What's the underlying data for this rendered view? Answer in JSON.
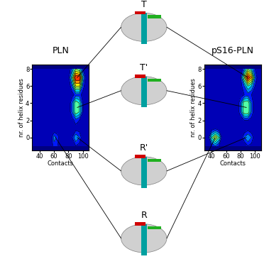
{
  "chart_data": [
    {
      "type": "contour",
      "title": "PLN",
      "x_label": "Contacts",
      "y_label": "nr. of helix residues",
      "x": [
        30,
        35,
        40,
        45,
        50,
        55,
        60,
        65,
        70,
        75,
        80,
        85,
        90,
        95,
        100,
        105,
        110
      ],
      "y": [
        -1,
        0,
        1,
        2,
        3,
        4,
        5,
        6,
        7,
        8
      ],
      "z": [
        [
          0,
          0,
          0,
          0,
          0,
          0,
          1.5,
          1,
          0,
          0,
          0,
          0,
          1,
          0.5,
          0,
          0,
          0
        ],
        [
          0,
          0,
          0,
          0,
          0,
          0,
          2.5,
          1.5,
          0,
          0,
          0,
          1,
          3,
          2,
          0,
          0,
          0
        ],
        [
          0,
          0,
          0,
          0,
          0,
          0,
          0,
          0,
          0,
          0,
          0,
          0,
          0.5,
          0.5,
          0,
          0,
          0
        ],
        [
          0,
          0,
          0,
          0,
          0,
          0,
          0,
          0,
          0,
          0,
          0,
          0.5,
          1.5,
          1,
          0,
          0,
          0
        ],
        [
          0,
          0,
          0,
          0,
          0,
          0,
          0,
          0,
          0,
          0,
          0,
          2,
          5,
          4,
          1,
          0,
          0
        ],
        [
          0,
          0,
          0,
          0,
          0,
          0,
          0,
          0,
          0,
          0,
          0,
          2,
          5,
          4,
          1,
          0,
          0
        ],
        [
          0,
          0,
          0,
          0,
          0,
          0,
          0,
          0,
          0,
          0,
          0,
          0.5,
          1.5,
          1.5,
          0.5,
          0,
          0
        ],
        [
          0,
          0,
          0,
          0,
          0,
          0,
          0,
          0,
          0,
          0,
          0,
          2,
          6,
          6,
          1.5,
          0,
          0
        ],
        [
          0,
          0,
          0,
          0,
          0,
          0,
          0,
          0,
          0,
          0,
          0.5,
          4,
          9,
          9,
          3,
          0,
          0
        ],
        [
          0,
          0,
          0,
          0,
          0,
          0,
          0,
          0,
          0,
          0,
          0,
          2,
          5,
          4,
          1,
          0,
          0
        ]
      ],
      "levels": [
        0,
        1,
        2,
        3,
        4,
        5,
        6,
        7,
        8,
        9,
        10
      ],
      "xlim": [
        30,
        108
      ],
      "ylim": [
        -1.5,
        8.5
      ],
      "xticks": [
        40,
        60,
        80,
        100
      ],
      "yticks": [
        0,
        2,
        4,
        6,
        8
      ]
    },
    {
      "type": "contour",
      "title": "pS16-PLN",
      "x_label": "Contacts",
      "y_label": "nr. of helix residues",
      "x": [
        30,
        35,
        40,
        45,
        50,
        55,
        60,
        65,
        70,
        75,
        80,
        85,
        90,
        95,
        100,
        105,
        110
      ],
      "y": [
        -1,
        0,
        1,
        2,
        3,
        4,
        5,
        6,
        7,
        8
      ],
      "z": [
        [
          0,
          0,
          1,
          2,
          1,
          0,
          0,
          0,
          0,
          0,
          0,
          0,
          1,
          0.5,
          0,
          0,
          0
        ],
        [
          0,
          0,
          4,
          6,
          4,
          0,
          0,
          0,
          0,
          0,
          0,
          2,
          3,
          2,
          0,
          0,
          0
        ],
        [
          0,
          0,
          0.5,
          1,
          0.5,
          0,
          0,
          0,
          0,
          0,
          0,
          0,
          0.5,
          0,
          0,
          0,
          0
        ],
        [
          0,
          0,
          0,
          0,
          0,
          0,
          0,
          0,
          0,
          0,
          0,
          1,
          1,
          0.5,
          0,
          0,
          0
        ],
        [
          0,
          0,
          0,
          0,
          0,
          0,
          0,
          0,
          0,
          0,
          2,
          5,
          5,
          2,
          0,
          0,
          0
        ],
        [
          0,
          0,
          0,
          0,
          0,
          0,
          0,
          0,
          0,
          0,
          2,
          5,
          5,
          2,
          0,
          0,
          0
        ],
        [
          0,
          0,
          0,
          0,
          0,
          0,
          0,
          0,
          0,
          0,
          0.5,
          1,
          1.5,
          1,
          0,
          0,
          0
        ],
        [
          0,
          0,
          0,
          0,
          0,
          0,
          0,
          0,
          0,
          0,
          0.5,
          2,
          4,
          3,
          1,
          0,
          0
        ],
        [
          0,
          0,
          0,
          0,
          0,
          0,
          0,
          0,
          0,
          0,
          1,
          5,
          9,
          7,
          2,
          0,
          0
        ],
        [
          0,
          0,
          0,
          0,
          0,
          0,
          0,
          0,
          0,
          0,
          0,
          2,
          5,
          3,
          1,
          0,
          0
        ]
      ],
      "levels": [
        0,
        1,
        2,
        3,
        4,
        5,
        6,
        7,
        8,
        9,
        10
      ],
      "xlim": [
        30,
        108
      ],
      "ylim": [
        -1.5,
        8.5
      ],
      "xticks": [
        40,
        60,
        80,
        100
      ],
      "yticks": [
        0,
        2,
        4,
        6,
        8
      ]
    }
  ],
  "states": [
    {
      "label": "T",
      "points": [
        [
          92,
          7
        ],
        [
          90,
          7
        ]
      ]
    },
    {
      "label": "T'",
      "points": [
        [
          92,
          3.5
        ],
        [
          88,
          3.5
        ]
      ]
    },
    {
      "label": "R'",
      "points": [
        [
          92,
          0
        ],
        [
          88,
          0
        ]
      ]
    },
    {
      "label": "R",
      "points": [
        [
          62,
          0
        ],
        [
          45,
          0
        ]
      ]
    }
  ]
}
